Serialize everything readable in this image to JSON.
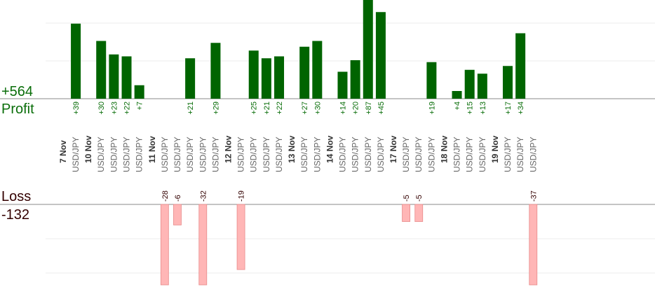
{
  "chart_data": {
    "type": "bar",
    "profit_total": "+564",
    "profit_label": "Profit",
    "loss_label": "Loss",
    "loss_total": "-132",
    "colors": {
      "profit": "#006400",
      "loss": "#ffb6b6",
      "loss_text": "#330000",
      "profit_text": "#0a6e0a"
    },
    "dates": [
      {
        "label": "7 Nov",
        "trades": [
          {
            "pair": "USD/JPY",
            "value": 39
          }
        ]
      },
      {
        "label": "10 Nov",
        "trades": [
          {
            "pair": "USD/JPY",
            "value": 30
          },
          {
            "pair": "USD/JPY",
            "value": 23
          },
          {
            "pair": "USD/JPY",
            "value": 22
          },
          {
            "pair": "USD/JPY",
            "value": 7
          }
        ]
      },
      {
        "label": "11 Nov",
        "trades": [
          {
            "pair": "USD/JPY",
            "value": -28
          },
          {
            "pair": "USD/JPY",
            "value": -6
          },
          {
            "pair": "USD/JPY",
            "value": 21
          },
          {
            "pair": "USD/JPY",
            "value": -32
          },
          {
            "pair": "USD/JPY",
            "value": 29
          }
        ]
      },
      {
        "label": "12 Nov",
        "trades": [
          {
            "pair": "USD/JPY",
            "value": -19
          },
          {
            "pair": "USD/JPY",
            "value": 25
          },
          {
            "pair": "USD/JPY",
            "value": 21
          },
          {
            "pair": "USD/JPY",
            "value": 22
          }
        ]
      },
      {
        "label": "13 Nov",
        "trades": [
          {
            "pair": "USD/JPY",
            "value": 27
          },
          {
            "pair": "USD/JPY",
            "value": 30
          }
        ]
      },
      {
        "label": "14 Nov",
        "trades": [
          {
            "pair": "USD/JPY",
            "value": 14
          },
          {
            "pair": "USD/JPY",
            "value": 20
          },
          {
            "pair": "USD/JPY",
            "value": 87
          },
          {
            "pair": "USD/JPY",
            "value": 45
          }
        ]
      },
      {
        "label": "17 Nov",
        "trades": [
          {
            "pair": "USD/JPY",
            "value": -5
          },
          {
            "pair": "USD/JPY",
            "value": -5
          },
          {
            "pair": "USD/JPY",
            "value": 19
          }
        ]
      },
      {
        "label": "18 Nov",
        "trades": [
          {
            "pair": "USD/JPY",
            "value": 4
          },
          {
            "pair": "USD/JPY",
            "value": 15
          },
          {
            "pair": "USD/JPY",
            "value": 13
          }
        ]
      },
      {
        "label": "19 Nov",
        "trades": [
          {
            "pair": "USD/JPY",
            "value": 17
          },
          {
            "pair": "USD/JPY",
            "value": 34
          },
          {
            "pair": "USD/JPY",
            "value": -37
          }
        ]
      }
    ]
  }
}
